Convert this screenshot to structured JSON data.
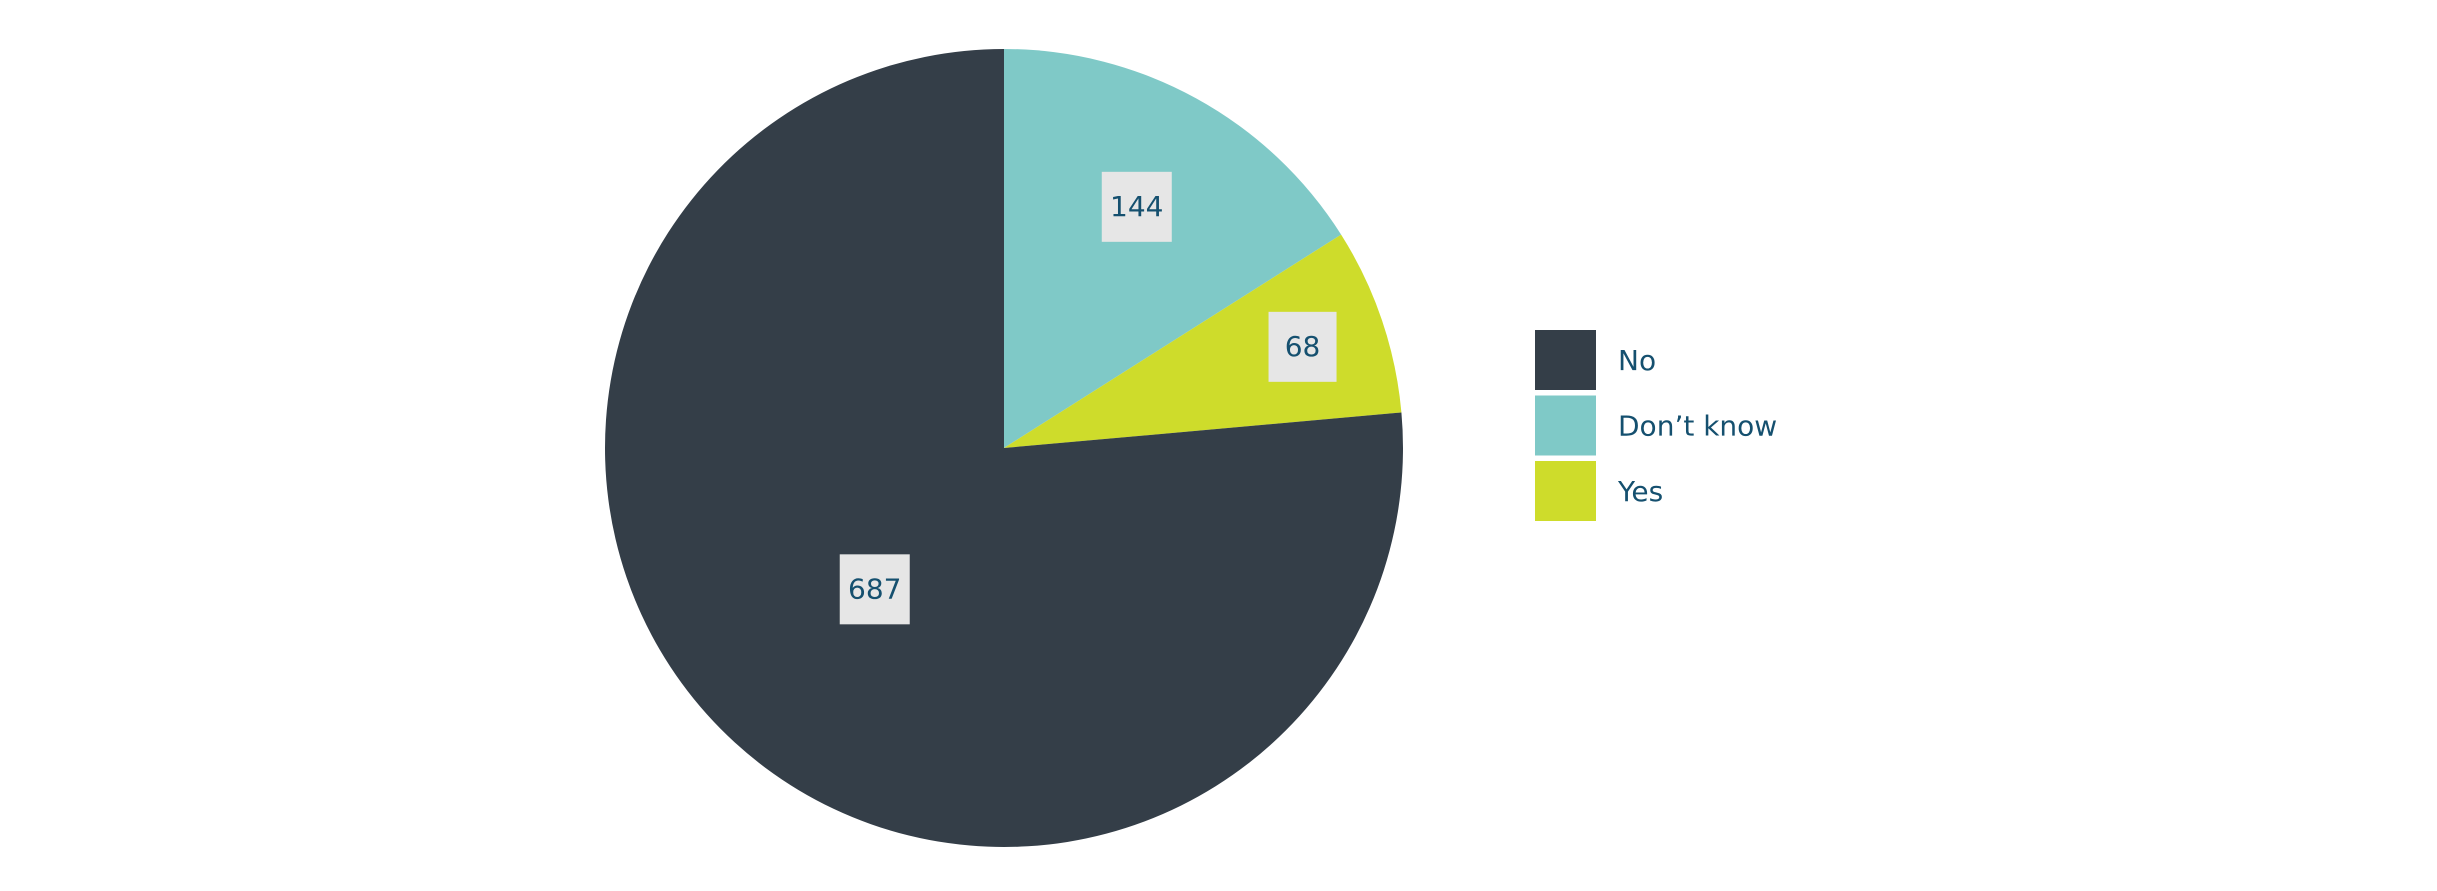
{
  "chart_data": {
    "type": "pie",
    "categories": [
      "No",
      "Don’t know",
      "Yes"
    ],
    "values": [
      687,
      144,
      68
    ],
    "colors": [
      "#343e48",
      "#7fc9c7",
      "#cedc2b"
    ],
    "legend": "right"
  }
}
